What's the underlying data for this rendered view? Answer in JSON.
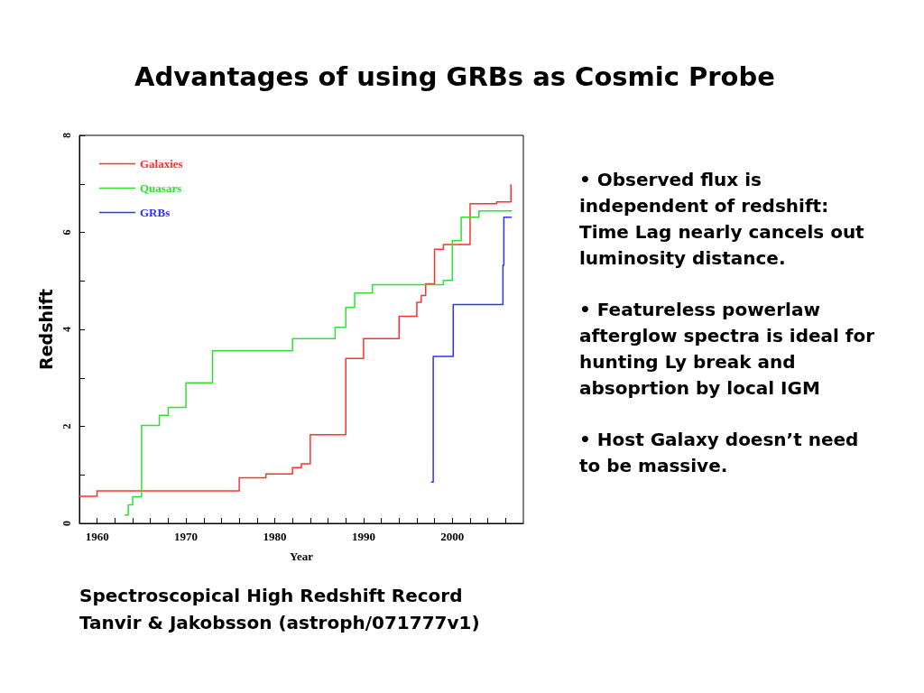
{
  "chart_data": {
    "type": "step",
    "title": "Advantages of using GRBs as Cosmic Probe",
    "subtitle": "Spectroscopical High Redshift Record",
    "xlabel": "Year",
    "ylabel": "Redshift",
    "xlim": [
      1958,
      2008
    ],
    "xticks": [
      {
        "value": 1958,
        "label": null
      },
      1960,
      {
        "value": 1962,
        "label": null
      },
      {
        "value": 1964,
        "label": null
      },
      {
        "value": 1966,
        "label": null
      },
      {
        "value": 1968,
        "label": null
      },
      1970,
      {
        "value": 1972,
        "label": null
      },
      {
        "value": 1974,
        "label": null
      },
      {
        "value": 1976,
        "label": null
      },
      {
        "value": 1978,
        "label": null
      },
      1980,
      {
        "value": 1982,
        "label": null
      },
      {
        "value": 1984,
        "label": null
      },
      {
        "value": 1986,
        "label": null
      },
      {
        "value": 1988,
        "label": null
      },
      1990,
      {
        "value": 1992,
        "label": null
      },
      {
        "value": 1994,
        "label": null
      },
      {
        "value": 1996,
        "label": null
      },
      {
        "value": 1998,
        "label": null
      },
      2000,
      {
        "value": 2002,
        "label": null
      },
      {
        "value": 2004,
        "label": null
      },
      {
        "value": 2006,
        "label": null
      }
    ],
    "ylim": [
      0,
      8
    ],
    "yticks": [
      0,
      {
        "value": 1,
        "label": null
      },
      2,
      {
        "value": 3,
        "label": null
      },
      4,
      {
        "value": 5,
        "label": null
      },
      6,
      {
        "value": 7,
        "label": null
      },
      8
    ],
    "legend": "top left",
    "grid": false,
    "marker": "none",
    "line_style": "solid",
    "series": [
      {
        "name": "Galaxies",
        "color": "#ff3030",
        "x": [
          1958,
          1960,
          1976,
          1979,
          1982,
          1983,
          1984,
          1988,
          1990,
          1994,
          1996,
          1996.5,
          1997,
          1998,
          1999,
          2002,
          2005,
          2006.6,
          2006.6
        ],
        "values": [
          0.56,
          0.67,
          0.94,
          1.02,
          1.15,
          1.23,
          1.83,
          3.4,
          3.81,
          4.27,
          4.56,
          4.7,
          4.94,
          5.65,
          5.75,
          6.59,
          6.63,
          6.63,
          6.99
        ]
      },
      {
        "name": "Quasars",
        "color": "#30e030",
        "x": [
          1963.1,
          1963.5,
          1964,
          1965,
          1967,
          1968,
          1970,
          1973,
          1982,
          1986.8,
          1988,
          1989,
          1991,
          1999,
          2000,
          2001,
          2003,
          2006.7
        ],
        "values": [
          0.17,
          0.38,
          0.55,
          2.02,
          2.23,
          2.39,
          2.9,
          3.56,
          3.81,
          4.04,
          4.45,
          4.75,
          4.92,
          5.01,
          5.83,
          6.31,
          6.44,
          6.44
        ]
      },
      {
        "name": "GRBs",
        "color": "#3030ff",
        "x": [
          1997.6,
          1997.85,
          2000.1,
          2005.7,
          2005.8,
          2006.7
        ],
        "values": [
          0.85,
          3.44,
          4.51,
          5.32,
          6.31,
          6.31
        ]
      }
    ],
    "annotations": [
      "• Observed flux is independent of redshift: Time Lag nearly cancels out luminosity distance.",
      "• Featureless powerlaw afterglow spectra is ideal for hunting Ly break and absoprtion by local IGM",
      "• Host Galaxy doesn’t need to be massive.",
      "Tanvir & Jakobsson (astroph/071777v1)"
    ]
  }
}
